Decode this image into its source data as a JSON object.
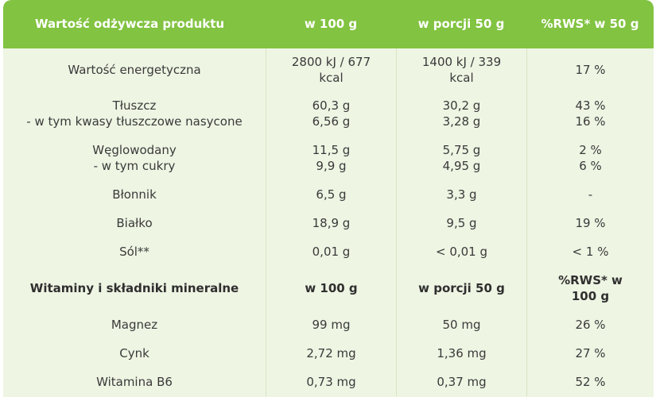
{
  "header": {
    "col1": "Wartość odżywcza produktu",
    "col2": "w 100 g",
    "col3": "w porcji 50 g",
    "col4": "%RWS* w 50 g"
  },
  "rows": [
    {
      "name": [
        "Wartość energetyczna"
      ],
      "per100": [
        "2800 kJ / 677",
        "kcal"
      ],
      "per50": [
        "1400 kJ / 339",
        "kcal"
      ],
      "rws": [
        "17 %"
      ]
    },
    {
      "name": [
        "Tłuszcz",
        "- w tym kwasy tłuszczowe nasycone"
      ],
      "per100": [
        "60,3 g",
        "6,56 g"
      ],
      "per50": [
        "30,2 g",
        "3,28 g"
      ],
      "rws": [
        "43 %",
        "16 %"
      ]
    },
    {
      "name": [
        "Węglowodany",
        "- w tym cukry"
      ],
      "per100": [
        "11,5 g",
        "9,9 g"
      ],
      "per50": [
        "5,75 g",
        "4,95 g"
      ],
      "rws": [
        "2 %",
        "6 %"
      ]
    },
    {
      "name": [
        "Błonnik"
      ],
      "per100": [
        "6,5 g"
      ],
      "per50": [
        "3,3 g"
      ],
      "rws": [
        "-"
      ]
    },
    {
      "name": [
        "Białko"
      ],
      "per100": [
        "18,9 g"
      ],
      "per50": [
        "9,5 g"
      ],
      "rws": [
        "19 %"
      ]
    },
    {
      "name": [
        "Sól**"
      ],
      "per100": [
        "0,01 g"
      ],
      "per50": [
        "< 0,01 g"
      ],
      "rws": [
        "< 1 %"
      ]
    }
  ],
  "vitamins_header": {
    "col1": "Witaminy i składniki mineralne",
    "col2": "w 100 g",
    "col3": "w porcji 50 g",
    "col4": [
      "%RWS* w",
      "100 g"
    ]
  },
  "vitamin_rows": [
    {
      "name": "Magnez",
      "per100": "99 mg",
      "per50": "50 mg",
      "rws": "26 %"
    },
    {
      "name": "Cynk",
      "per100": "2,72 mg",
      "per50": "1,36 mg",
      "rws": "27 %"
    },
    {
      "name": "Witamina B6",
      "per100": "0,73 mg",
      "per50": "0,37 mg",
      "rws": "52 %"
    }
  ],
  "colors": {
    "header_bg": "#82c341",
    "table_bg": "#eef5e3",
    "text": "#3a3a3a"
  }
}
